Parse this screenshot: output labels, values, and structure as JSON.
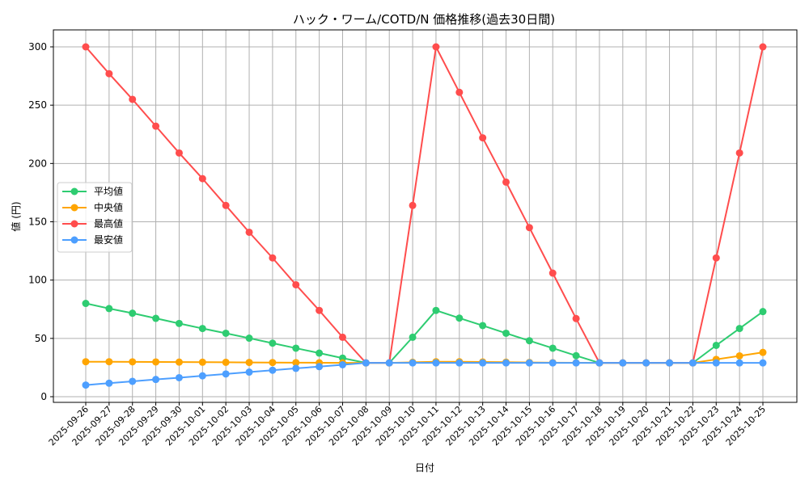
{
  "chart_data": {
    "type": "line",
    "title": "ハック・ワーム/COTD/N 価格推移(過去30日間)",
    "xlabel": "日付",
    "ylabel": "値 (円)",
    "ylim": [
      -5,
      315
    ],
    "yticks": [
      0,
      50,
      100,
      150,
      200,
      250,
      300
    ],
    "grid": true,
    "legend_position": "center left",
    "categories": [
      "2025-09-26",
      "2025-09-27",
      "2025-09-28",
      "2025-09-29",
      "2025-09-30",
      "2025-10-01",
      "2025-10-02",
      "2025-10-03",
      "2025-10-04",
      "2025-10-05",
      "2025-10-06",
      "2025-10-07",
      "2025-10-08",
      "2025-10-09",
      "2025-10-10",
      "2025-10-11",
      "2025-10-12",
      "2025-10-13",
      "2025-10-14",
      "2025-10-15",
      "2025-10-16",
      "2025-10-17",
      "2025-10-18",
      "2025-10-19",
      "2025-10-20",
      "2025-10-21",
      "2025-10-22",
      "2025-10-23",
      "2025-10-24",
      "2025-10-25"
    ],
    "series": [
      {
        "name": "平均値",
        "color": "#2ecc71",
        "values": [
          80,
          75.6,
          71.6,
          67.2,
          62.8,
          58.5,
          54.4,
          50.2,
          45.9,
          41.6,
          37.4,
          33.1,
          29,
          29,
          51,
          74,
          67.4,
          61,
          54.4,
          48,
          41.6,
          35.2,
          29,
          29,
          29,
          29,
          29,
          44,
          58.5,
          73
        ]
      },
      {
        "name": "中央値",
        "color": "#ffa500",
        "values": [
          30,
          30,
          29.9,
          29.8,
          29.7,
          29.6,
          29.5,
          29.4,
          29.3,
          29.2,
          29.1,
          29,
          29,
          29,
          29.5,
          30,
          30,
          29.8,
          29.6,
          29.4,
          29.2,
          29.1,
          29,
          29,
          29,
          29,
          29,
          32,
          35,
          38
        ]
      },
      {
        "name": "最高値",
        "color": "#ff4d4d",
        "values": [
          300,
          277,
          255,
          232,
          209,
          187,
          164,
          141,
          119,
          96,
          74,
          51,
          29,
          29,
          164,
          300,
          261,
          222,
          184,
          145,
          106,
          67,
          29,
          29,
          29,
          29,
          29,
          119,
          209,
          300
        ]
      },
      {
        "name": "最安値",
        "color": "#4d9fff",
        "values": [
          10,
          11.6,
          13.2,
          14.8,
          16.3,
          17.9,
          19.5,
          21.1,
          22.7,
          24.3,
          25.8,
          27.4,
          29,
          29,
          29,
          29,
          29,
          29,
          29,
          29,
          29,
          29,
          29,
          29,
          29,
          29,
          29,
          29,
          29,
          29
        ]
      }
    ]
  }
}
